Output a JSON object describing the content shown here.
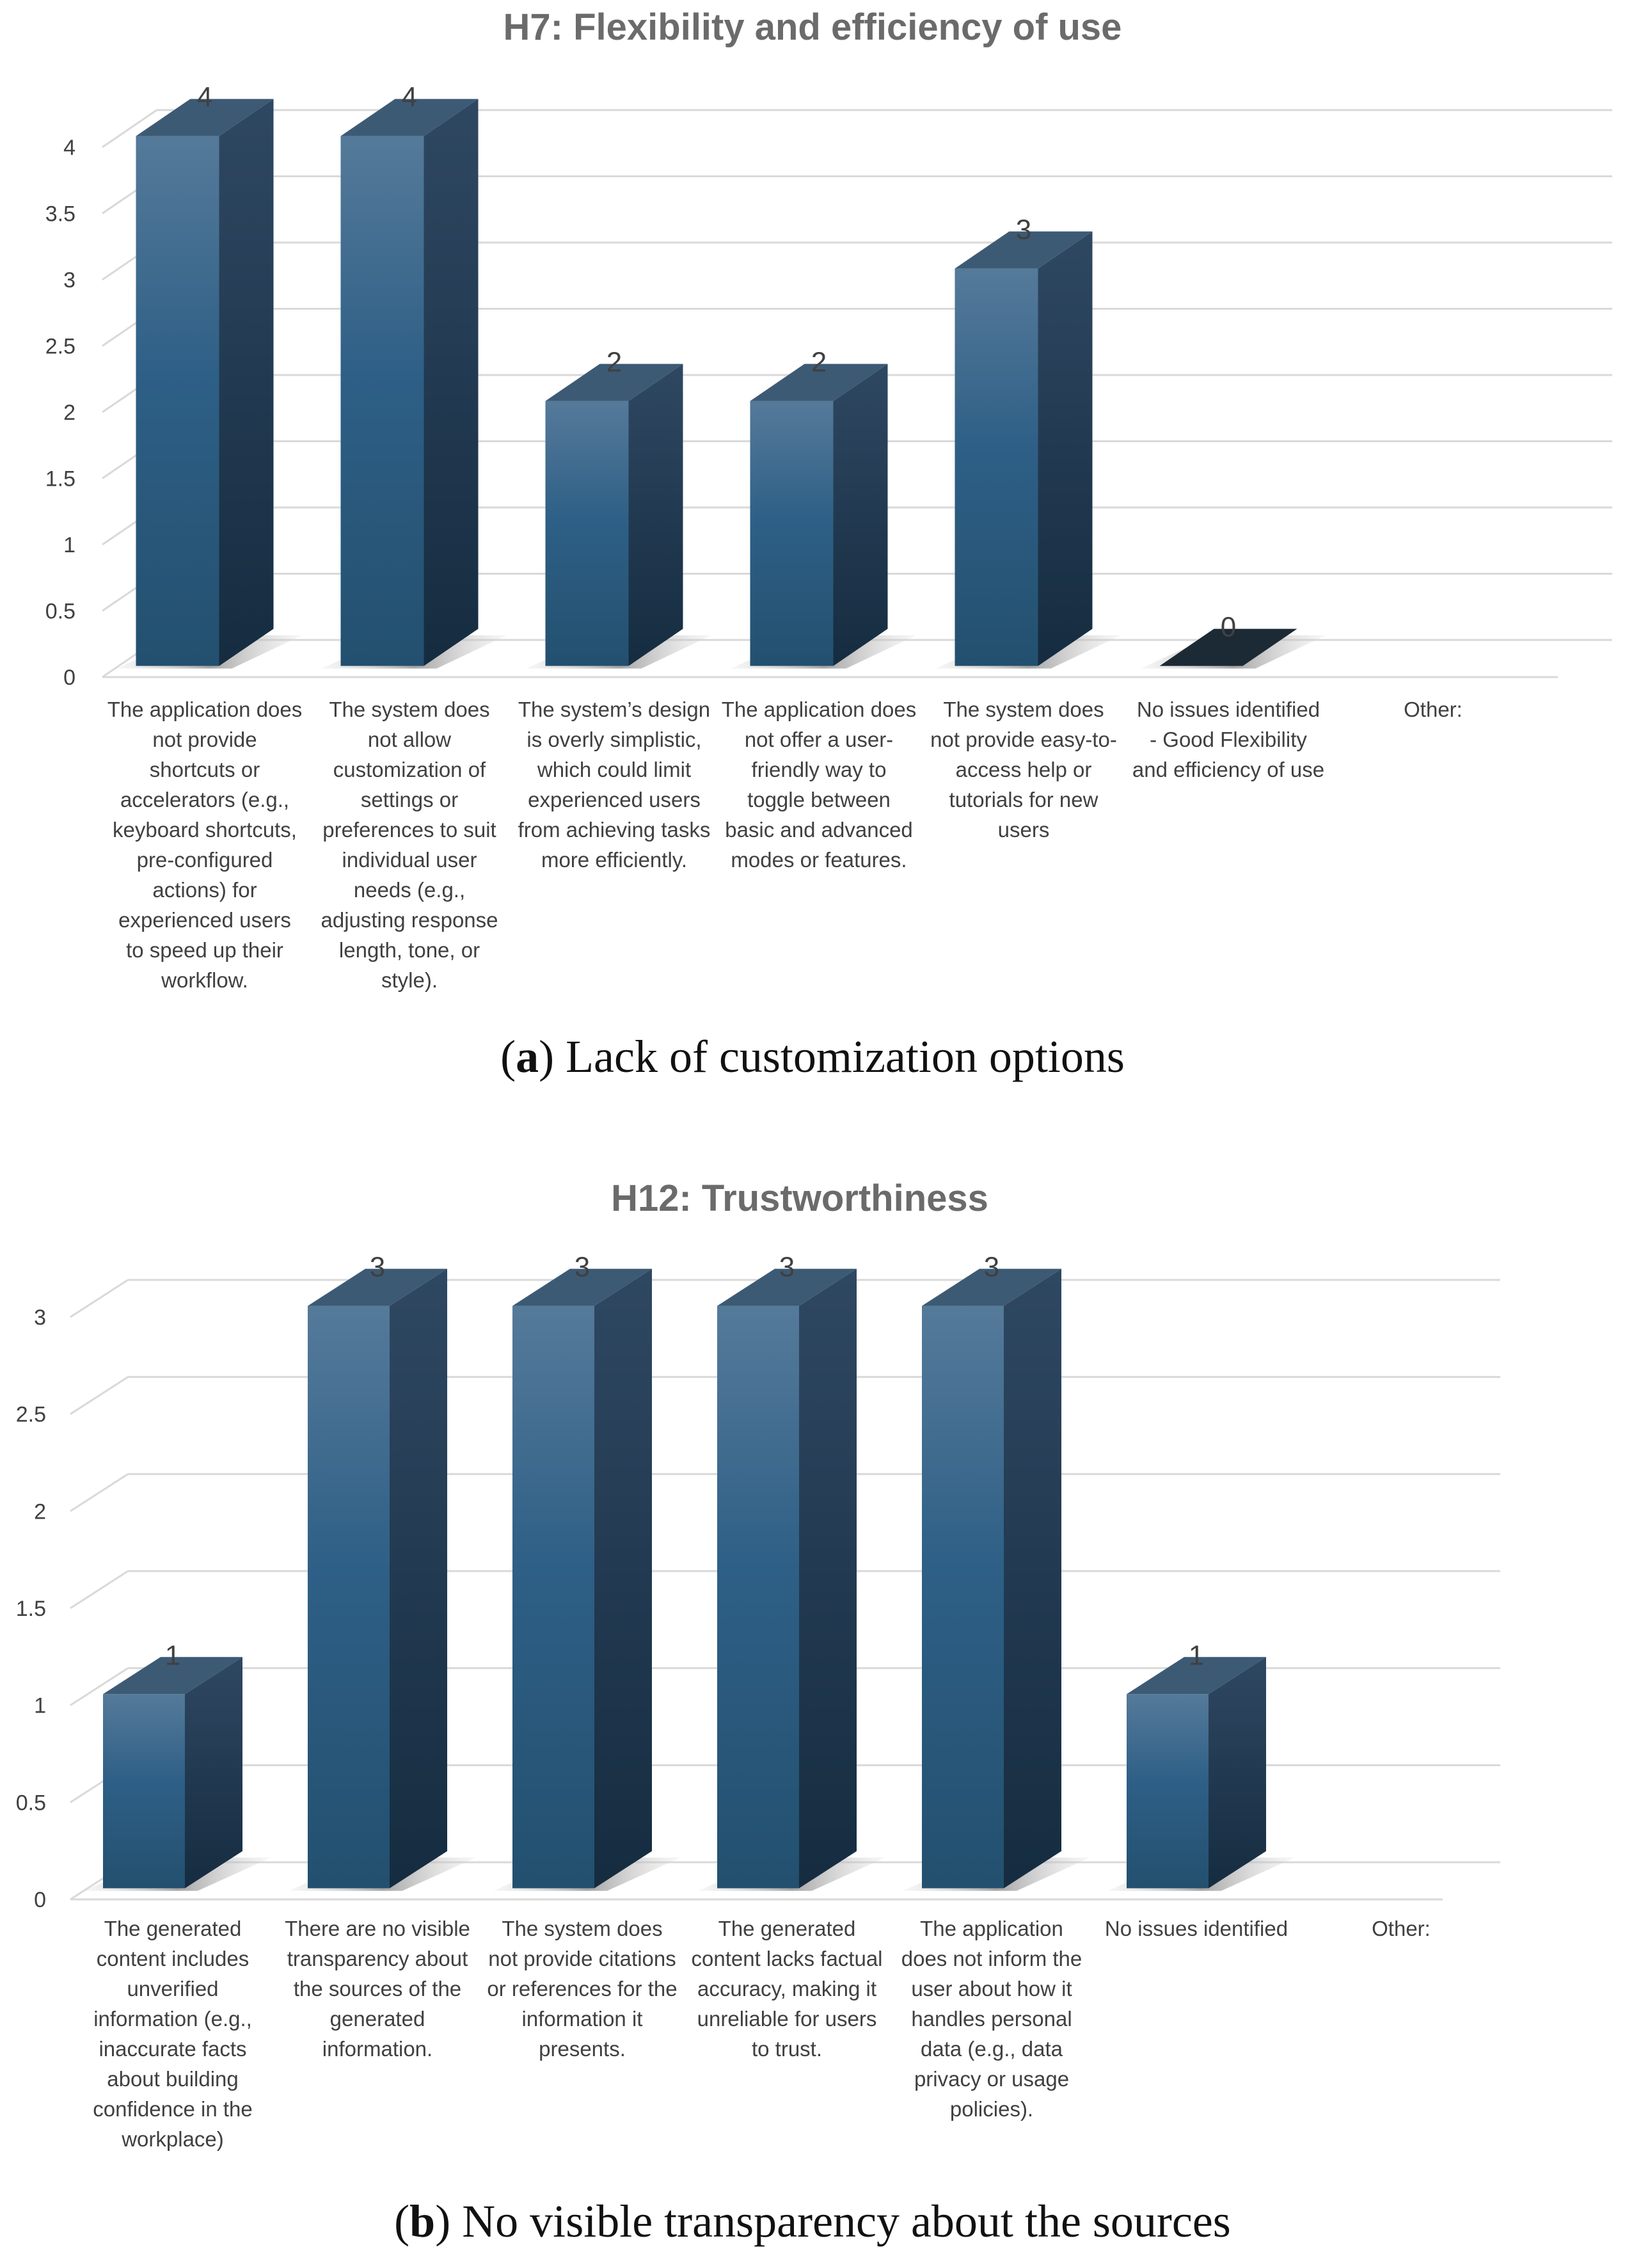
{
  "chart_data": [
    {
      "type": "bar",
      "title": "H7: Flexibility and efficiency of use",
      "categories": [
        "The application does not provide shortcuts or accelerators (e.g., keyboard shortcuts, pre-configured actions) for experienced users to speed up their workflow.",
        "The system does not allow customization of settings or preferences to suit individual user needs (e.g., adjusting response length, tone, or style).",
        "The system’s design is overly simplistic, which could limit experienced users from achieving tasks more efficiently.",
        "The application does not offer a user-friendly way to toggle between basic and advanced modes or features.",
        "The system does not provide easy-to-access help or tutorials for new users",
        "No issues identified - Good Flexibility and efficiency of use",
        "Other:"
      ],
      "values": [
        4,
        4,
        2,
        2,
        3,
        0,
        null
      ],
      "data_labels": [
        "4",
        "4",
        "2",
        "2",
        "3",
        "0",
        ""
      ],
      "ylim": [
        0,
        4
      ],
      "yticks": [
        "0",
        "0.5",
        "1",
        "1.5",
        "2",
        "2.5",
        "3",
        "3.5",
        "4"
      ],
      "grid": true,
      "style": "3d-column",
      "bar_color": "#2e5f86",
      "caption_letter": "a",
      "caption_text": " Lack of customization options"
    },
    {
      "type": "bar",
      "title": "H12: Trustworthiness",
      "categories": [
        "The generated content includes unverified information (e.g., inaccurate facts about building confidence in the workplace)",
        "There are no visible transparency about the sources of the generated information.",
        "The system does not provide citations or references for the information it presents.",
        "The generated content lacks factual accuracy, making it unreliable for users to trust.",
        "The application does not inform the user about how it handles personal data (e.g., data privacy or usage policies).",
        "No issues identified",
        "Other:"
      ],
      "values": [
        1,
        3,
        3,
        3,
        3,
        1,
        null
      ],
      "data_labels": [
        "1",
        "3",
        "3",
        "3",
        "3",
        "1",
        ""
      ],
      "ylim": [
        0,
        3
      ],
      "yticks": [
        "0",
        "0.5",
        "1",
        "1.5",
        "2",
        "2.5",
        "3"
      ],
      "grid": true,
      "style": "3d-column",
      "bar_color": "#2e5f86",
      "caption_letter": "b",
      "caption_text": " No visible transparency about the sources"
    }
  ]
}
